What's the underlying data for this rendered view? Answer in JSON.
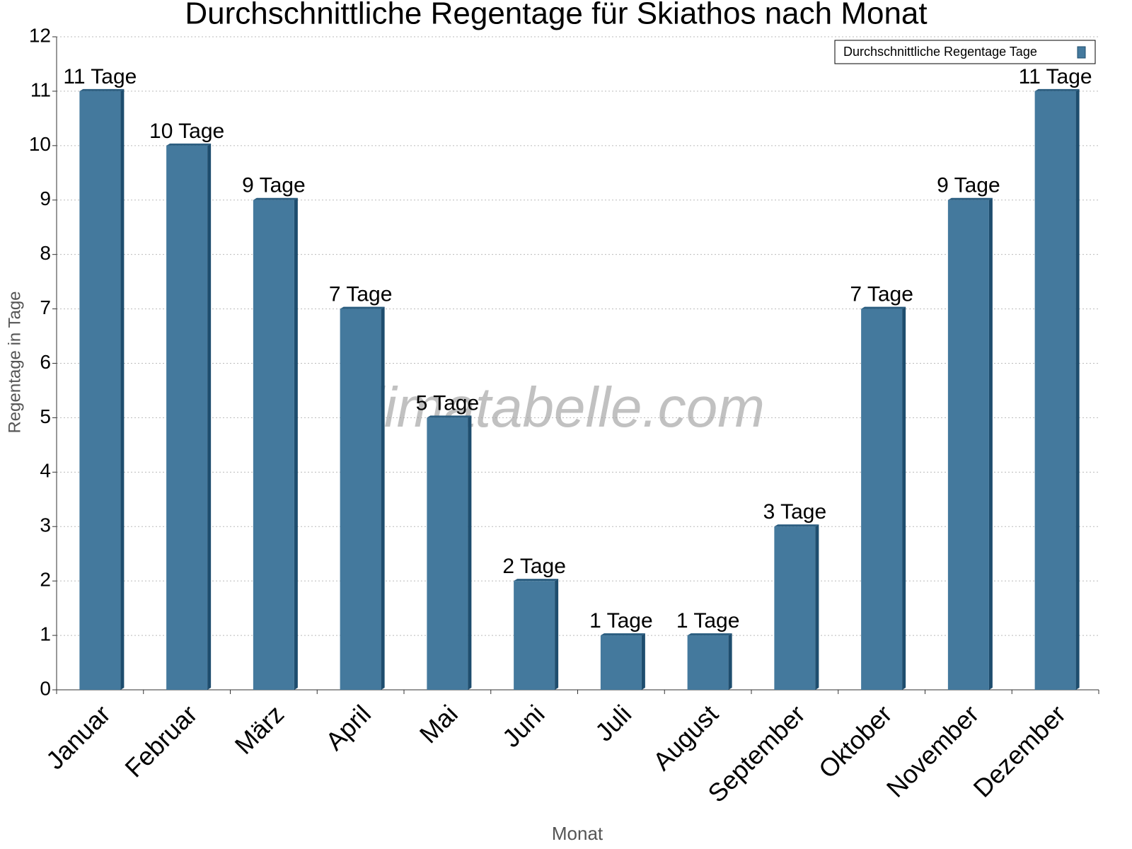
{
  "chart_data": {
    "type": "bar",
    "title": "Durchschnittliche Regentage für Skiathos nach Monat",
    "xlabel": "Monat",
    "ylabel": "Regentage in Tage",
    "watermark": "klimatabelle.com",
    "categories": [
      "Januar",
      "Februar",
      "März",
      "April",
      "Mai",
      "Juni",
      "Juli",
      "August",
      "September",
      "Oktober",
      "November",
      "Dezember"
    ],
    "series": [
      {
        "name": "Durchschnittliche Regentage Tage",
        "color": "#44799d",
        "values": [
          11,
          10,
          9,
          7,
          5,
          2,
          1,
          1,
          3,
          7,
          9,
          11
        ],
        "value_labels": [
          "11 Tage",
          "10 Tage",
          "9 Tage",
          "7 Tage",
          "5 Tage",
          "2 Tage",
          "1 Tage",
          "1 Tage",
          "3 Tage",
          "7 Tage",
          "9 Tage",
          "11 Tage"
        ]
      }
    ],
    "ylim": [
      0,
      12
    ],
    "yticks": [
      0,
      1,
      2,
      3,
      4,
      5,
      6,
      7,
      8,
      9,
      10,
      11,
      12
    ],
    "grid": true,
    "legend": "upper right"
  }
}
